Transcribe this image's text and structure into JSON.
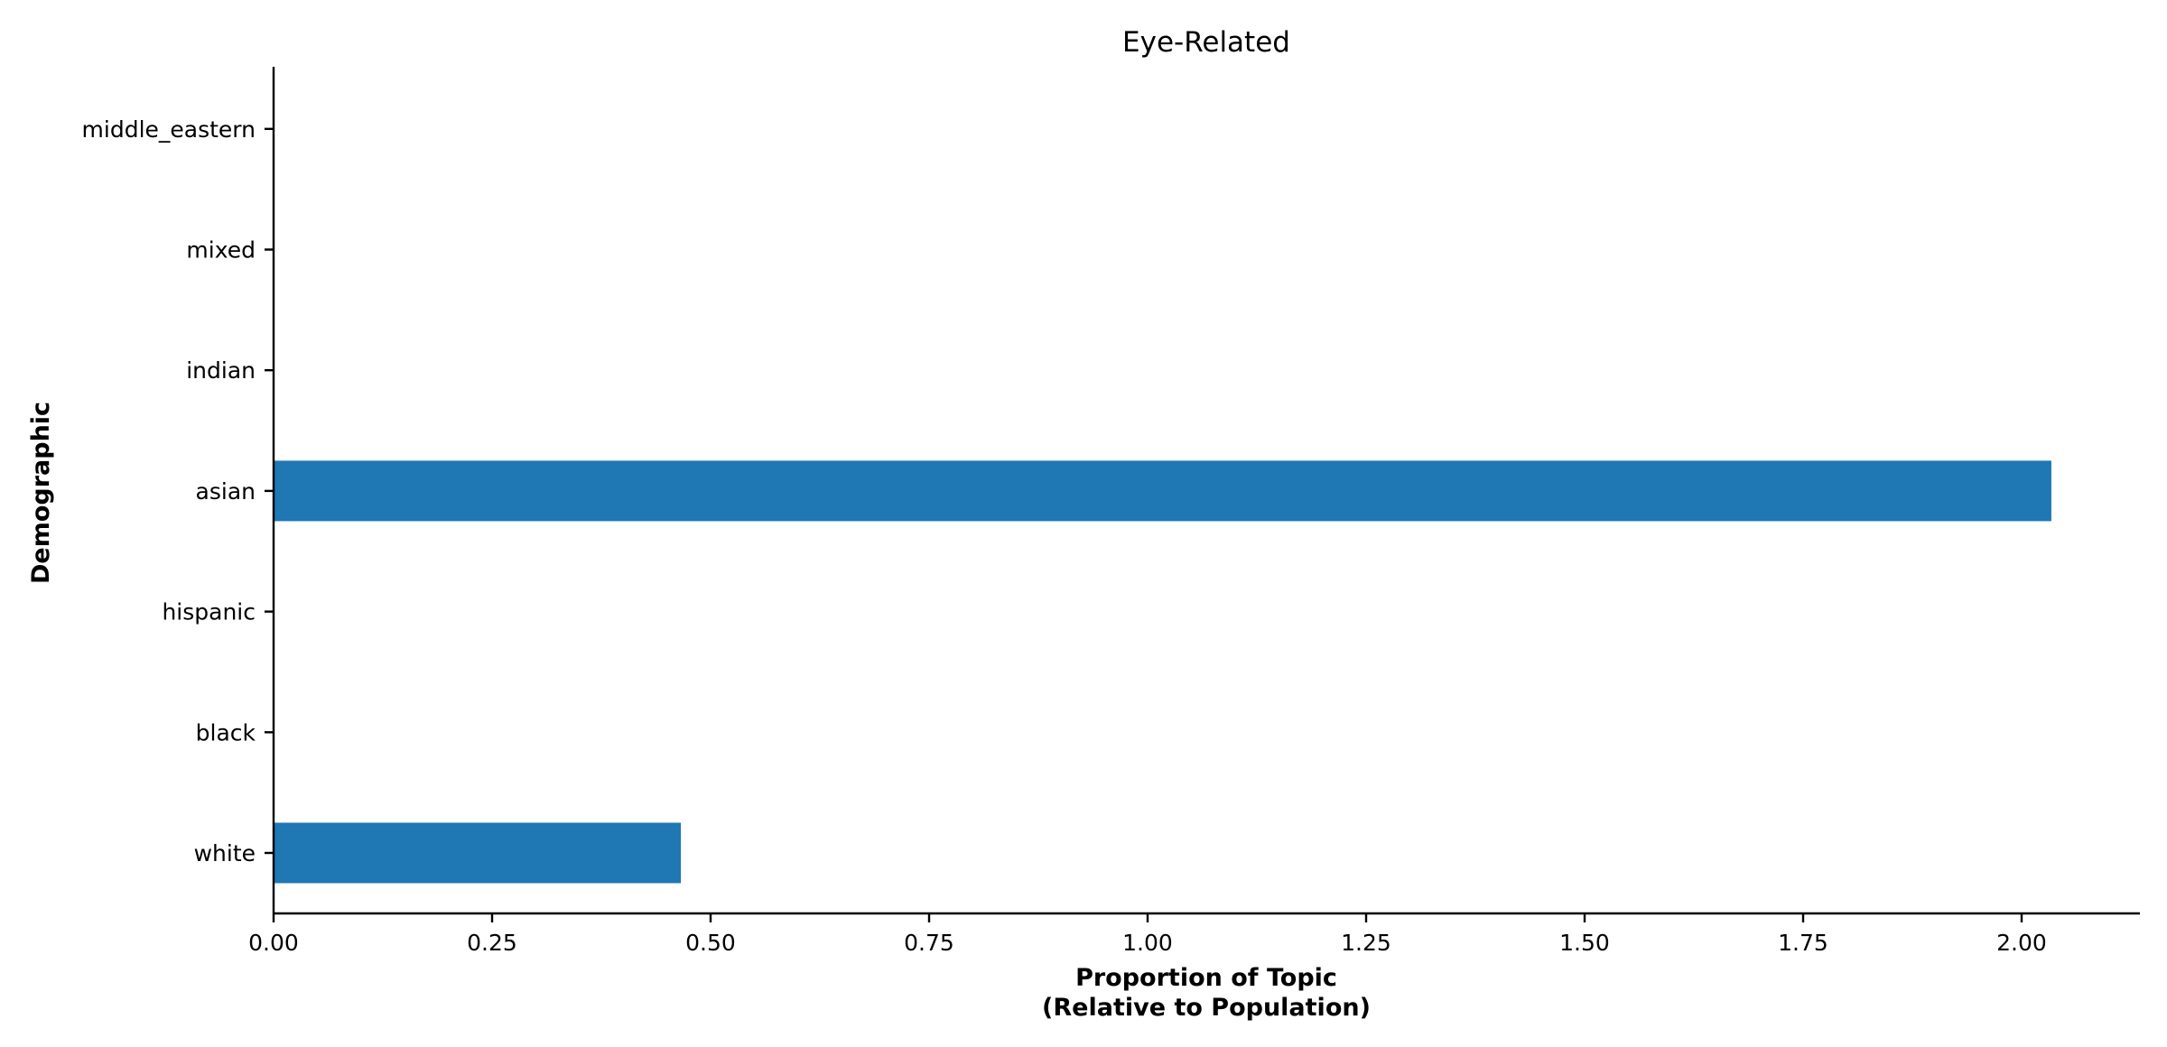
{
  "chart_data": {
    "type": "bar",
    "orientation": "horizontal",
    "title": "Eye-Related",
    "xlabel_lines": [
      "Proportion of Topic",
      "(Relative to Population)"
    ],
    "ylabel": "Demographic",
    "categories": [
      "white",
      "black",
      "hispanic",
      "asian",
      "indian",
      "mixed",
      "middle_eastern"
    ],
    "values": [
      0.466,
      0,
      0,
      2.034,
      0,
      0,
      0
    ],
    "xlim": [
      0,
      2.13
    ],
    "xticks": [
      0.0,
      0.25,
      0.5,
      0.75,
      1.0,
      1.25,
      1.5,
      1.75,
      2.0
    ],
    "xtick_labels": [
      "0.00",
      "0.25",
      "0.50",
      "0.75",
      "1.00",
      "1.25",
      "1.50",
      "1.75",
      "2.00"
    ],
    "bar_color": "#1f77b4",
    "grid": false,
    "spines": [
      "left",
      "bottom"
    ]
  }
}
